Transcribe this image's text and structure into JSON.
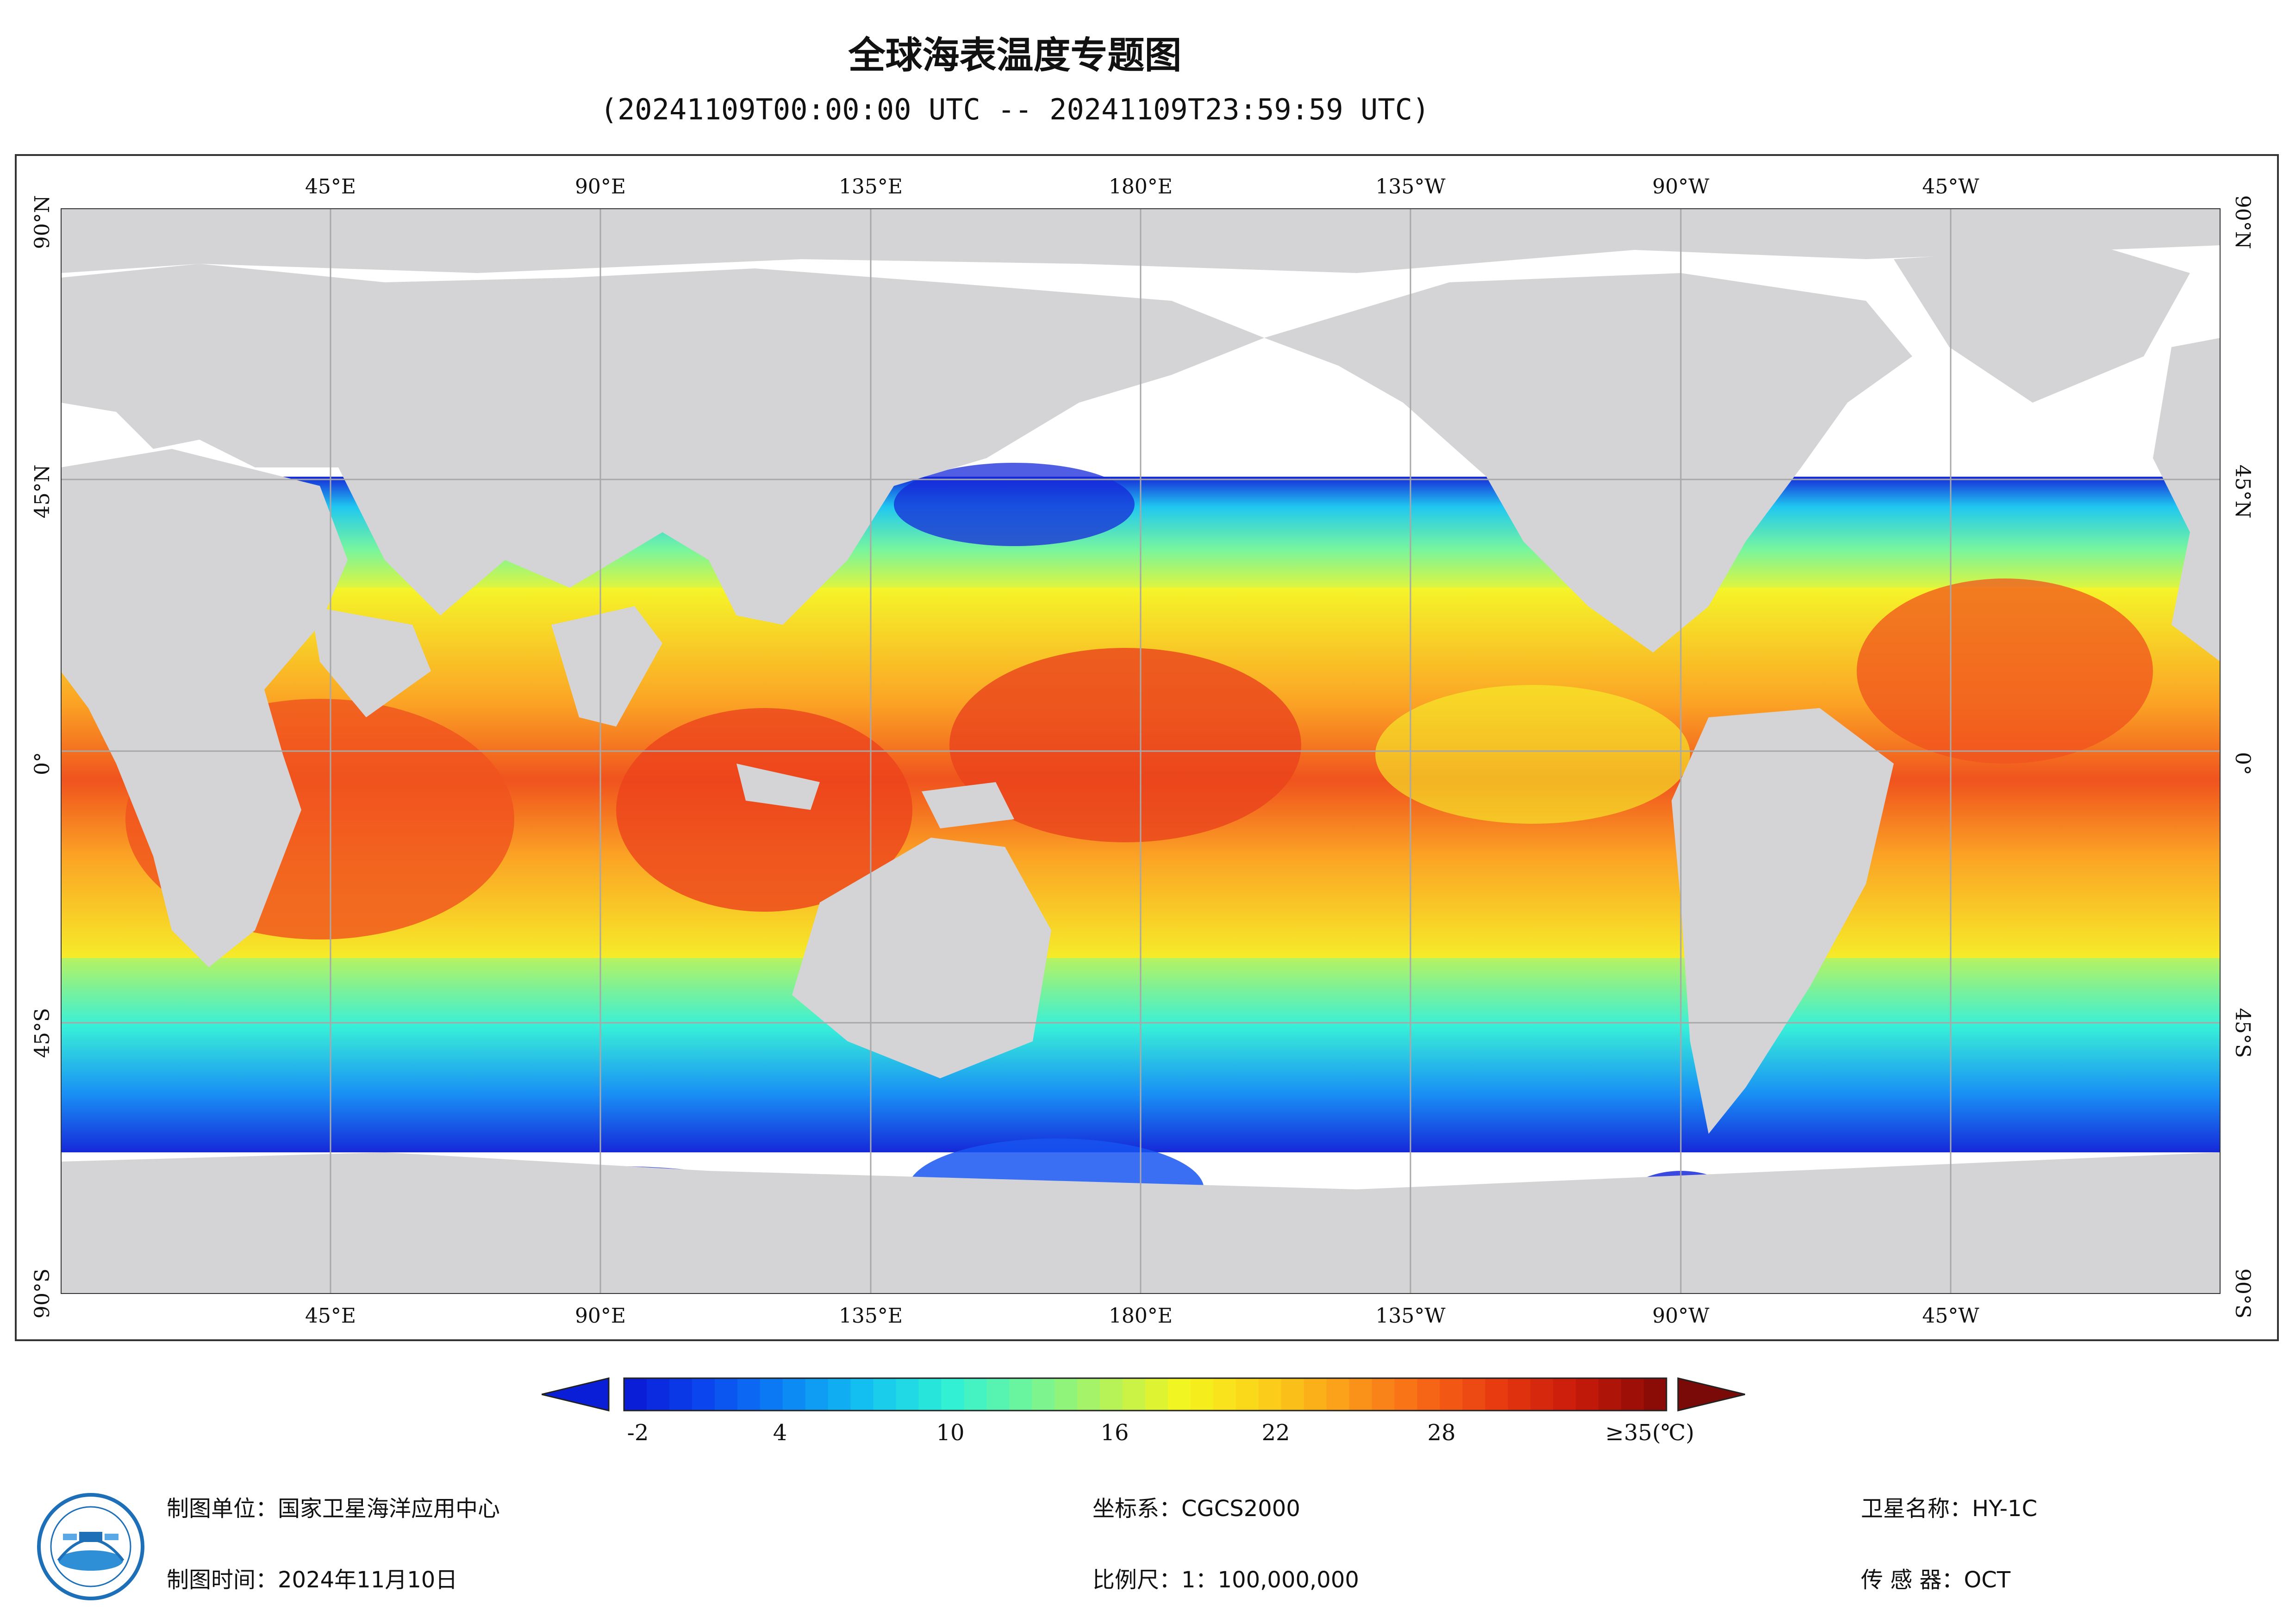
{
  "title": "全球海表温度专题图",
  "subtitle": "(20241109T00:00:00 UTC -- 20241109T23:59:59 UTC)",
  "map": {
    "lon_labels": [
      "45°E",
      "90°E",
      "135°E",
      "180°E",
      "135°W",
      "90°W",
      "45°W"
    ],
    "lat_labels": [
      "90°N",
      "45°N",
      "0°",
      "45°S",
      "90°S"
    ],
    "colors": {
      "land": "#d4d4d6",
      "no_data": "#ffffff",
      "grid": "#a8a8a8",
      "frame": "#333333"
    }
  },
  "colorbar": {
    "ticks": [
      "-2",
      "4",
      "10",
      "16",
      "22",
      "28",
      "≥35(℃)"
    ],
    "range": [
      -2,
      35
    ],
    "colors": [
      "#0a1ed8",
      "#0b4bf0",
      "#0d8af5",
      "#14c5f0",
      "#2ef0d6",
      "#6ff59a",
      "#b3f25a",
      "#f5f51e",
      "#fbd21a",
      "#fb9f1a",
      "#f86a16",
      "#e83a10",
      "#c81a0a",
      "#8b0b06"
    ],
    "under_color": "#0a1ed8",
    "over_color": "#7a0a08"
  },
  "footer": {
    "left": [
      "制图单位：国家卫星海洋应用中心",
      "制图时间：2024年11月10日"
    ],
    "middle": [
      "坐标系：CGCS2000",
      "比例尺：1：100,000,000"
    ],
    "right": [
      "卫星名称：HY-1C",
      "传 感 器：OCT"
    ]
  }
}
